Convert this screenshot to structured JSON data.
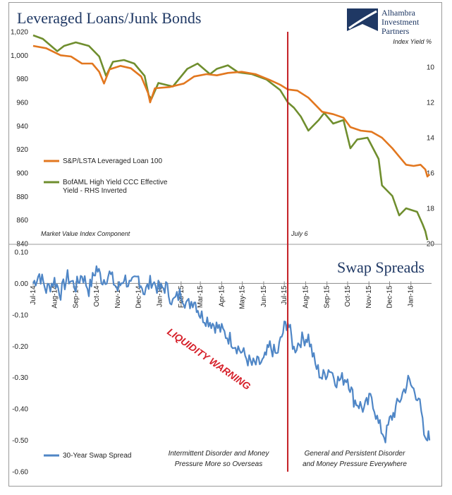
{
  "colors": {
    "loan": "#E2771F",
    "hy": "#6F8E2E",
    "swap": "#4F86C6",
    "marker": "#C41E24",
    "warning": "#D6202A",
    "title": "#1F3864"
  },
  "top_chart": {
    "title": "Leveraged Loans/Junk Bonds",
    "logo": {
      "line1": "Alhambra",
      "line2": "Investment",
      "line3": "Partners"
    },
    "rhs_axis_label": "Index Yield %",
    "footnote": "Market Value Index Component",
    "marker_label": "July 6",
    "left_ticks": [
      "1,020",
      "1,000",
      "980",
      "960",
      "940",
      "920",
      "900",
      "880",
      "860",
      "840"
    ],
    "right_ticks": [
      "10",
      "12",
      "14",
      "16",
      "18",
      "20"
    ],
    "legend": [
      {
        "label": "S&P/LSTA Leveraged Loan 100"
      },
      {
        "label_line1": "BofAML High Yield CCC Effective",
        "label_line2": "Yield - RHS Inverted"
      }
    ]
  },
  "bottom_chart": {
    "title": "Swap Spreads",
    "left_ticks": [
      "0.10",
      "0.00",
      "-0.10",
      "-0.20",
      "-0.30",
      "-0.40",
      "-0.50",
      "-0.60"
    ],
    "month_ticks": [
      "Jul-14",
      "Aug-14",
      "Sep-14",
      "Oct-14",
      "Nov-14",
      "Dec-14",
      "Jan-15",
      "Feb-15",
      "Mar-15",
      "Apr-15",
      "May-15",
      "Jun-15",
      "Jul-15",
      "Aug-15",
      "Sep-15",
      "Oct-15",
      "Nov-15",
      "Dec-15",
      "Jan-16"
    ],
    "warning": "LIQUIDITY WARNING",
    "legend": "30-Year Swap Spread",
    "note_left_line1": "Intermittent Disorder and Money",
    "note_left_line2": "Pressure More so Overseas",
    "note_right_line1": "General and Persistent Disorder",
    "note_right_line2": "and Money Pressure Everywhere"
  },
  "chart_data": [
    {
      "type": "line",
      "title": "Leveraged Loans/Junk Bonds",
      "xlim": [
        "2014-07-01",
        "2016-01-31"
      ],
      "ylim": [
        840,
        1020
      ],
      "y2lim": [
        8,
        20
      ],
      "y2_inverted": true,
      "marker_date": "2015-07-06",
      "series": [
        {
          "name": "S&P/LSTA Leveraged Loan 100",
          "axis": "left",
          "points": [
            [
              "2014-07-01",
              1008
            ],
            [
              "2014-07-20",
              1006
            ],
            [
              "2014-08-10",
              1000
            ],
            [
              "2014-08-25",
              999
            ],
            [
              "2014-09-10",
              993
            ],
            [
              "2014-09-25",
              993
            ],
            [
              "2014-10-05",
              986
            ],
            [
              "2014-10-12",
              976
            ],
            [
              "2014-10-20",
              988
            ],
            [
              "2014-11-05",
              991
            ],
            [
              "2014-11-20",
              989
            ],
            [
              "2014-12-05",
              982
            ],
            [
              "2014-12-15",
              968
            ],
            [
              "2014-12-18",
              960
            ],
            [
              "2014-12-25",
              972
            ],
            [
              "2015-01-15",
              973
            ],
            [
              "2015-02-05",
              976
            ],
            [
              "2015-02-20",
              982
            ],
            [
              "2015-03-10",
              984
            ],
            [
              "2015-03-25",
              983
            ],
            [
              "2015-04-10",
              985
            ],
            [
              "2015-04-30",
              986
            ],
            [
              "2015-05-20",
              984
            ],
            [
              "2015-06-10",
              979
            ],
            [
              "2015-06-25",
              975
            ],
            [
              "2015-07-06",
              971
            ],
            [
              "2015-07-20",
              970
            ],
            [
              "2015-08-05",
              964
            ],
            [
              "2015-08-15",
              958
            ],
            [
              "2015-08-25",
              952
            ],
            [
              "2015-09-10",
              950
            ],
            [
              "2015-09-25",
              947
            ],
            [
              "2015-10-05",
              939
            ],
            [
              "2015-10-20",
              936
            ],
            [
              "2015-11-05",
              935
            ],
            [
              "2015-11-20",
              930
            ],
            [
              "2015-12-05",
              921
            ],
            [
              "2015-12-15",
              914
            ],
            [
              "2015-12-25",
              907
            ],
            [
              "2016-01-05",
              906
            ],
            [
              "2016-01-15",
              907
            ],
            [
              "2016-01-22",
              903
            ],
            [
              "2016-01-25",
              897
            ],
            [
              "2016-01-28",
              899
            ]
          ]
        },
        {
          "name": "BofAML High Yield CCC Effective Yield - RHS Inverted",
          "axis": "right",
          "points": [
            [
              "2014-07-01",
              8.2
            ],
            [
              "2014-07-15",
              8.4
            ],
            [
              "2014-08-05",
              9.1
            ],
            [
              "2014-08-15",
              8.8
            ],
            [
              "2014-09-01",
              8.6
            ],
            [
              "2014-09-20",
              8.8
            ],
            [
              "2014-10-05",
              9.4
            ],
            [
              "2014-10-15",
              10.5
            ],
            [
              "2014-10-25",
              9.7
            ],
            [
              "2014-11-10",
              9.6
            ],
            [
              "2014-11-25",
              9.8
            ],
            [
              "2014-12-10",
              10.5
            ],
            [
              "2014-12-16",
              11.6
            ],
            [
              "2014-12-20",
              11.8
            ],
            [
              "2014-12-30",
              10.9
            ],
            [
              "2015-01-20",
              11.1
            ],
            [
              "2015-02-10",
              10.1
            ],
            [
              "2015-02-25",
              9.8
            ],
            [
              "2015-03-15",
              10.4
            ],
            [
              "2015-03-25",
              10.1
            ],
            [
              "2015-04-10",
              9.9
            ],
            [
              "2015-04-25",
              10.3
            ],
            [
              "2015-05-15",
              10.4
            ],
            [
              "2015-06-05",
              10.7
            ],
            [
              "2015-06-25",
              11.3
            ],
            [
              "2015-07-06",
              12.0
            ],
            [
              "2015-07-15",
              12.3
            ],
            [
              "2015-07-25",
              12.8
            ],
            [
              "2015-08-05",
              13.6
            ],
            [
              "2015-08-20",
              13.0
            ],
            [
              "2015-08-28",
              12.6
            ],
            [
              "2015-09-10",
              13.2
            ],
            [
              "2015-09-25",
              13.0
            ],
            [
              "2015-10-05",
              14.6
            ],
            [
              "2015-10-15",
              14.1
            ],
            [
              "2015-10-30",
              14.0
            ],
            [
              "2015-11-15",
              15.2
            ],
            [
              "2015-11-20",
              16.7
            ],
            [
              "2015-12-05",
              17.3
            ],
            [
              "2015-12-15",
              18.4
            ],
            [
              "2015-12-25",
              18.0
            ],
            [
              "2016-01-10",
              18.2
            ],
            [
              "2016-01-18",
              18.9
            ],
            [
              "2016-01-22",
              19.3
            ],
            [
              "2016-01-25",
              19.8
            ]
          ]
        }
      ],
      "legend_position": "left-middle"
    },
    {
      "type": "line",
      "title": "Swap Spreads",
      "xlim": [
        "2014-07-01",
        "2016-01-31"
      ],
      "ylim": [
        -0.6,
        0.1
      ],
      "marker_date": "2015-07-06",
      "series": [
        {
          "name": "30-Year Swap Spread",
          "axis": "left",
          "points": [
            [
              "2014-07-01",
              0.0
            ],
            [
              "2014-07-10",
              0.03
            ],
            [
              "2014-07-20",
              -0.02
            ],
            [
              "2014-08-01",
              0.01
            ],
            [
              "2014-08-10",
              -0.03
            ],
            [
              "2014-08-20",
              0.02
            ],
            [
              "2014-09-01",
              -0.01
            ],
            [
              "2014-09-10",
              0.03
            ],
            [
              "2014-09-20",
              -0.02
            ],
            [
              "2014-10-01",
              0.05
            ],
            [
              "2014-10-10",
              0.01
            ],
            [
              "2014-10-20",
              0.03
            ],
            [
              "2014-11-01",
              -0.02
            ],
            [
              "2014-11-10",
              0.02
            ],
            [
              "2014-11-20",
              -0.01
            ],
            [
              "2014-12-01",
              0.02
            ],
            [
              "2014-12-10",
              -0.03
            ],
            [
              "2014-12-20",
              0.01
            ],
            [
              "2015-01-01",
              -0.02
            ],
            [
              "2015-01-10",
              -0.01
            ],
            [
              "2015-01-20",
              -0.06
            ],
            [
              "2015-02-01",
              -0.03
            ],
            [
              "2015-02-10",
              -0.07
            ],
            [
              "2015-02-20",
              -0.05
            ],
            [
              "2015-03-01",
              -0.1
            ],
            [
              "2015-03-15",
              -0.12
            ],
            [
              "2015-04-01",
              -0.15
            ],
            [
              "2015-04-15",
              -0.18
            ],
            [
              "2015-05-01",
              -0.22
            ],
            [
              "2015-05-15",
              -0.26
            ],
            [
              "2015-06-01",
              -0.25
            ],
            [
              "2015-06-10",
              -0.2
            ],
            [
              "2015-06-20",
              -0.23
            ],
            [
              "2015-07-01",
              -0.14
            ],
            [
              "2015-07-06",
              -0.12
            ],
            [
              "2015-07-15",
              -0.21
            ],
            [
              "2015-07-25",
              -0.18
            ],
            [
              "2015-08-05",
              -0.17
            ],
            [
              "2015-08-15",
              -0.26
            ],
            [
              "2015-08-25",
              -0.3
            ],
            [
              "2015-09-05",
              -0.27
            ],
            [
              "2015-09-15",
              -0.31
            ],
            [
              "2015-10-01",
              -0.3
            ],
            [
              "2015-10-10",
              -0.37
            ],
            [
              "2015-10-25",
              -0.4
            ],
            [
              "2015-11-05",
              -0.36
            ],
            [
              "2015-11-15",
              -0.45
            ],
            [
              "2015-11-25",
              -0.49
            ],
            [
              "2015-12-01",
              -0.44
            ],
            [
              "2015-12-10",
              -0.4
            ],
            [
              "2015-12-20",
              -0.35
            ],
            [
              "2015-12-28",
              -0.31
            ],
            [
              "2016-01-05",
              -0.34
            ],
            [
              "2016-01-12",
              -0.36
            ],
            [
              "2016-01-18",
              -0.45
            ],
            [
              "2016-01-22",
              -0.51
            ],
            [
              "2016-01-25",
              -0.48
            ],
            [
              "2016-01-28",
              -0.5
            ]
          ]
        }
      ],
      "legend_position": "bottom-left"
    }
  ]
}
